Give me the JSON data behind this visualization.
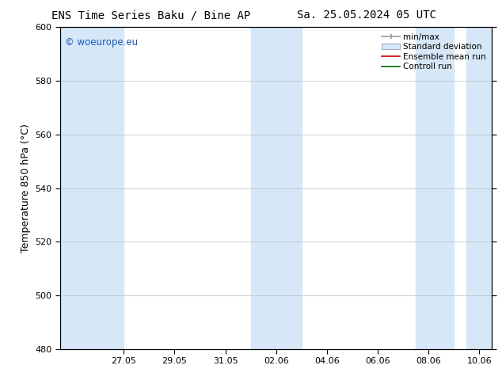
{
  "title_left": "ENS Time Series Baku / Bine AP",
  "title_right": "Sa. 25.05.2024 05 UTC",
  "ylabel": "Temperature 850 hPa (°C)",
  "watermark": "© woeurope.eu",
  "ylim": [
    480,
    600
  ],
  "yticks": [
    480,
    500,
    520,
    540,
    560,
    580,
    600
  ],
  "x_labels": [
    "27.05",
    "29.05",
    "31.05",
    "02.06",
    "04.06",
    "06.06",
    "08.06",
    "10.06"
  ],
  "bg_color": "#ffffff",
  "band_color": "#d6e8f7",
  "legend_labels": [
    "min/max",
    "Standard deviation",
    "Ensemble mean run",
    "Controll run"
  ],
  "title_fontsize": 10,
  "label_fontsize": 9,
  "tick_fontsize": 8
}
